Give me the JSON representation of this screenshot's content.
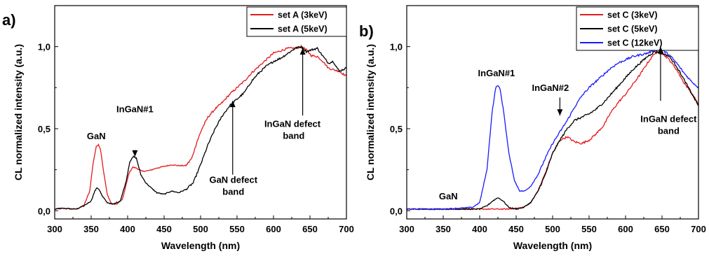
{
  "colors": {
    "red": "#e41a1c",
    "black": "#000000",
    "blue": "#1a1aff"
  },
  "chart_data": [
    {
      "type": "line",
      "panel_label": "a)",
      "xlabel": "Wavelength (nm)",
      "ylabel": "CL normalized intensity (a.u.)",
      "xlim": [
        300,
        700
      ],
      "ylim": [
        -0.05,
        1.25
      ],
      "xticks": [
        300,
        350,
        400,
        450,
        500,
        550,
        600,
        650,
        700
      ],
      "xtick_labels": [
        "300",
        "350",
        "400",
        "450",
        "500",
        "550",
        "600",
        "650",
        "700"
      ],
      "yticks": [
        0,
        0.5,
        1.0
      ],
      "ytick_labels": [
        "0,0",
        "0,5",
        "1,0"
      ],
      "legend": "top-right",
      "grid": false,
      "series": [
        {
          "name": "set A (3keV)",
          "color": "#e41a1c",
          "points": [
            [
              300,
              0.01
            ],
            [
              310,
              0.015
            ],
            [
              320,
              0.012
            ],
            [
              330,
              0.01
            ],
            [
              340,
              0.03
            ],
            [
              348,
              0.12
            ],
            [
              353,
              0.3
            ],
            [
              357,
              0.39
            ],
            [
              360,
              0.405
            ],
            [
              363,
              0.37
            ],
            [
              367,
              0.24
            ],
            [
              372,
              0.1
            ],
            [
              378,
              0.04
            ],
            [
              385,
              0.04
            ],
            [
              393,
              0.07
            ],
            [
              398,
              0.16
            ],
            [
              402,
              0.23
            ],
            [
              407,
              0.265
            ],
            [
              412,
              0.26
            ],
            [
              420,
              0.24
            ],
            [
              430,
              0.245
            ],
            [
              440,
              0.26
            ],
            [
              450,
              0.27
            ],
            [
              460,
              0.28
            ],
            [
              470,
              0.275
            ],
            [
              480,
              0.275
            ],
            [
              488,
              0.32
            ],
            [
              495,
              0.42
            ],
            [
              502,
              0.5
            ],
            [
              510,
              0.57
            ],
            [
              520,
              0.62
            ],
            [
              530,
              0.66
            ],
            [
              540,
              0.71
            ],
            [
              550,
              0.75
            ],
            [
              560,
              0.79
            ],
            [
              570,
              0.84
            ],
            [
              580,
              0.88
            ],
            [
              590,
              0.92
            ],
            [
              600,
              0.96
            ],
            [
              610,
              0.975
            ],
            [
              620,
              0.99
            ],
            [
              630,
              0.99
            ],
            [
              638,
              1.0
            ],
            [
              645,
              0.98
            ],
            [
              652,
              0.945
            ],
            [
              660,
              0.94
            ],
            [
              668,
              0.91
            ],
            [
              675,
              0.87
            ],
            [
              682,
              0.86
            ],
            [
              690,
              0.85
            ],
            [
              700,
              0.82
            ]
          ]
        },
        {
          "name": "set A (5keV)",
          "color": "#000000",
          "points": [
            [
              300,
              0.01
            ],
            [
              310,
              0.015
            ],
            [
              320,
              0.012
            ],
            [
              330,
              0.01
            ],
            [
              340,
              0.03
            ],
            [
              350,
              0.06
            ],
            [
              355,
              0.12
            ],
            [
              358,
              0.14
            ],
            [
              361,
              0.13
            ],
            [
              365,
              0.09
            ],
            [
              372,
              0.05
            ],
            [
              380,
              0.04
            ],
            [
              390,
              0.06
            ],
            [
              398,
              0.18
            ],
            [
              403,
              0.3
            ],
            [
              408,
              0.33
            ],
            [
              412,
              0.32
            ],
            [
              418,
              0.22
            ],
            [
              425,
              0.17
            ],
            [
              432,
              0.14
            ],
            [
              440,
              0.11
            ],
            [
              450,
              0.1
            ],
            [
              460,
              0.12
            ],
            [
              470,
              0.11
            ],
            [
              480,
              0.13
            ],
            [
              490,
              0.17
            ],
            [
              500,
              0.28
            ],
            [
              510,
              0.4
            ],
            [
              520,
              0.5
            ],
            [
              530,
              0.58
            ],
            [
              540,
              0.64
            ],
            [
              550,
              0.68
            ],
            [
              560,
              0.72
            ],
            [
              570,
              0.79
            ],
            [
              580,
              0.84
            ],
            [
              590,
              0.88
            ],
            [
              600,
              0.91
            ],
            [
              610,
              0.93
            ],
            [
              620,
              0.96
            ],
            [
              630,
              0.99
            ],
            [
              638,
              1.0
            ],
            [
              645,
              0.97
            ],
            [
              652,
              0.98
            ],
            [
              660,
              0.99
            ],
            [
              668,
              0.94
            ],
            [
              675,
              0.9
            ],
            [
              682,
              0.91
            ],
            [
              690,
              0.85
            ],
            [
              700,
              0.87
            ]
          ]
        }
      ],
      "annotations": [
        {
          "lines": [
            "GaN"
          ],
          "x": 357,
          "y": 0.435
        },
        {
          "lines": [
            "InGaN#1"
          ],
          "x": 410,
          "y": 0.6
        },
        {
          "lines": [
            "GaN defect",
            "band"
          ],
          "x": 545,
          "y": 0.17
        },
        {
          "lines": [
            "InGaN defect",
            " band"
          ],
          "x": 626,
          "y": 0.51
        }
      ]
    },
    {
      "type": "line",
      "panel_label": "b)",
      "xlabel": "Wavelength (nm)",
      "ylabel": "CL normalized intensity (a.u.)",
      "xlim": [
        300,
        700
      ],
      "ylim": [
        -0.05,
        1.25
      ],
      "xticks": [
        300,
        350,
        400,
        450,
        500,
        550,
        600,
        650,
        700
      ],
      "xtick_labels": [
        "300",
        "350",
        "400",
        "450",
        "500",
        "550",
        "600",
        "650",
        "700"
      ],
      "yticks": [
        0,
        0.5,
        1.0
      ],
      "ytick_labels": [
        "0,0",
        "0,5",
        "1,0"
      ],
      "legend": "top-right",
      "grid": false,
      "series": [
        {
          "name": "set C (3keV)",
          "color": "#e41a1c",
          "points": [
            [
              300,
              0.01
            ],
            [
              350,
              0.01
            ],
            [
              400,
              0.01
            ],
            [
              420,
              0.01
            ],
            [
              440,
              0.01
            ],
            [
              460,
              0.02
            ],
            [
              470,
              0.05
            ],
            [
              480,
              0.12
            ],
            [
              490,
              0.23
            ],
            [
              500,
              0.35
            ],
            [
              510,
              0.43
            ],
            [
              520,
              0.45
            ],
            [
              530,
              0.42
            ],
            [
              540,
              0.41
            ],
            [
              550,
              0.43
            ],
            [
              560,
              0.47
            ],
            [
              570,
              0.52
            ],
            [
              580,
              0.6
            ],
            [
              590,
              0.66
            ],
            [
              600,
              0.71
            ],
            [
              610,
              0.77
            ],
            [
              620,
              0.83
            ],
            [
              630,
              0.9
            ],
            [
              640,
              0.96
            ],
            [
              650,
              0.96
            ],
            [
              660,
              0.92
            ],
            [
              670,
              0.86
            ],
            [
              680,
              0.78
            ],
            [
              690,
              0.72
            ],
            [
              700,
              0.65
            ]
          ]
        },
        {
          "name": "set C (5keV)",
          "color": "#000000",
          "points": [
            [
              300,
              0.01
            ],
            [
              350,
              0.01
            ],
            [
              400,
              0.01
            ],
            [
              410,
              0.03
            ],
            [
              418,
              0.06
            ],
            [
              425,
              0.08
            ],
            [
              432,
              0.06
            ],
            [
              440,
              0.02
            ],
            [
              450,
              0.01
            ],
            [
              460,
              0.02
            ],
            [
              470,
              0.05
            ],
            [
              480,
              0.12
            ],
            [
              490,
              0.22
            ],
            [
              500,
              0.35
            ],
            [
              510,
              0.43
            ],
            [
              520,
              0.5
            ],
            [
              530,
              0.55
            ],
            [
              540,
              0.57
            ],
            [
              550,
              0.59
            ],
            [
              560,
              0.62
            ],
            [
              570,
              0.66
            ],
            [
              580,
              0.71
            ],
            [
              590,
              0.76
            ],
            [
              600,
              0.81
            ],
            [
              610,
              0.86
            ],
            [
              620,
              0.9
            ],
            [
              630,
              0.94
            ],
            [
              640,
              0.97
            ],
            [
              650,
              0.96
            ],
            [
              660,
              0.94
            ],
            [
              670,
              0.88
            ],
            [
              680,
              0.8
            ],
            [
              690,
              0.72
            ],
            [
              700,
              0.64
            ]
          ]
        },
        {
          "name": "set C (12keV)",
          "color": "#1a1aff",
          "points": [
            [
              300,
              0.01
            ],
            [
              350,
              0.01
            ],
            [
              390,
              0.02
            ],
            [
              400,
              0.05
            ],
            [
              410,
              0.25
            ],
            [
              417,
              0.6
            ],
            [
              422,
              0.75
            ],
            [
              425,
              0.765
            ],
            [
              428,
              0.74
            ],
            [
              433,
              0.6
            ],
            [
              440,
              0.35
            ],
            [
              448,
              0.18
            ],
            [
              455,
              0.12
            ],
            [
              462,
              0.12
            ],
            [
              470,
              0.15
            ],
            [
              480,
              0.22
            ],
            [
              490,
              0.32
            ],
            [
              500,
              0.41
            ],
            [
              510,
              0.48
            ],
            [
              520,
              0.55
            ],
            [
              530,
              0.63
            ],
            [
              540,
              0.7
            ],
            [
              550,
              0.75
            ],
            [
              560,
              0.79
            ],
            [
              570,
              0.83
            ],
            [
              580,
              0.87
            ],
            [
              590,
              0.9
            ],
            [
              600,
              0.92
            ],
            [
              610,
              0.94
            ],
            [
              620,
              0.95
            ],
            [
              630,
              0.96
            ],
            [
              640,
              0.98
            ],
            [
              650,
              0.98
            ],
            [
              660,
              0.95
            ],
            [
              670,
              0.9
            ],
            [
              680,
              0.84
            ],
            [
              690,
              0.79
            ],
            [
              700,
              0.75
            ]
          ]
        }
      ],
      "annotations": [
        {
          "lines": [
            "GaN"
          ],
          "x": 357,
          "y": 0.07
        },
        {
          "lines": [
            "InGaN#1"
          ],
          "x": 423,
          "y": 0.82
        },
        {
          "lines": [
            "InGaN#2"
          ],
          "x": 497,
          "y": 0.73
        },
        {
          "lines": [
            "InGaN defect",
            "band"
          ],
          "x": 659,
          "y": 0.54
        }
      ]
    }
  ]
}
